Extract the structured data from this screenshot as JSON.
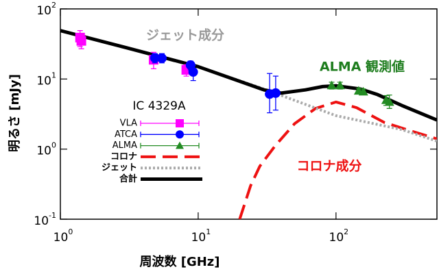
{
  "chart_data": {
    "type": "line",
    "xlabel": "周波数 [GHz]",
    "ylabel": "明るさ [mJy]",
    "xscale": "log",
    "yscale": "log",
    "xlim": [
      1,
      540
    ],
    "ylim": [
      0.1,
      100
    ],
    "xticks": [
      {
        "value": 1,
        "label": "10",
        "exponent": "0"
      },
      {
        "value": 10,
        "label": "10",
        "exponent": "1"
      },
      {
        "value": 100,
        "label": "10",
        "exponent": "2"
      }
    ],
    "yticks": [
      {
        "value": 0.1,
        "label": "10",
        "exponent": "-1"
      },
      {
        "value": 1,
        "label": "10",
        "exponent": "0"
      },
      {
        "value": 10,
        "label": "10",
        "exponent": "1"
      },
      {
        "value": 100,
        "label": "10",
        "exponent": "2"
      }
    ],
    "legend": "lower left",
    "legend_title": "IC 4329A",
    "annotations": [
      {
        "text": "ジェット成分",
        "color": "#999999"
      },
      {
        "text": "ALMA 観測値",
        "color": "#1e7d1e"
      },
      {
        "text": "コロナ成分",
        "color": "#ee1111"
      }
    ],
    "series": [
      {
        "name": "VLA",
        "color": "#ff00ff",
        "style": "errorbar",
        "marker": "square",
        "x": [
          1.39,
          1.42,
          4.75,
          8.2
        ],
        "values": [
          39,
          35,
          18.8,
          13.5
        ],
        "lower": [
          29,
          27,
          14,
          11
        ],
        "upper": [
          49,
          44,
          24,
          16
        ]
      },
      {
        "name": "ATCA",
        "color": "#0000ff",
        "style": "errorbar",
        "marker": "circle",
        "x": [
          4.85,
          5.45,
          8.8,
          9.2,
          33,
          36.5
        ],
        "values": [
          20,
          19.8,
          15.8,
          12.6,
          6.1,
          6.3
        ],
        "lower": [
          17,
          17,
          13.5,
          9.5,
          3.3,
          3.6
        ],
        "upper": [
          23,
          23,
          18,
          15.5,
          12,
          11
        ]
      },
      {
        "name": "ALMA",
        "color": "#228b22",
        "style": "errorbar",
        "marker": "triangle",
        "x": [
          93,
          107,
          146,
          158,
          231,
          244
        ],
        "values": [
          8.1,
          8.1,
          6.8,
          6.6,
          5.0,
          4.7
        ],
        "lower": [
          7.2,
          7.2,
          6.2,
          6.0,
          4.2,
          3.8
        ],
        "upper": [
          9,
          9,
          7.4,
          7.2,
          5.8,
          5.9
        ]
      },
      {
        "name": "コロナ",
        "color": "#ee1111",
        "style": "dashed",
        "x": [
          20,
          24,
          28,
          36,
          50,
          71,
          100,
          141,
          224,
          355,
          540
        ],
        "values": [
          0.1,
          0.3,
          0.57,
          1.1,
          2.3,
          3.8,
          4.7,
          3.9,
          2.4,
          1.8,
          1.4
        ]
      },
      {
        "name": "ジェット",
        "color": "#aaaaaa",
        "style": "dotted",
        "x": [
          1,
          3,
          10,
          30,
          100,
          300,
          540
        ],
        "values": [
          49,
          28,
          15,
          7.2,
          3.0,
          1.9,
          1.3
        ]
      },
      {
        "name": "合計",
        "color": "#000000",
        "style": "solid",
        "x": [
          1,
          3,
          10,
          30,
          40,
          60,
          80,
          100,
          150,
          200,
          300,
          540
        ],
        "values": [
          49,
          28,
          15,
          7,
          6.3,
          7,
          7.8,
          8.0,
          7.2,
          6,
          4.2,
          2.6
        ]
      }
    ]
  }
}
